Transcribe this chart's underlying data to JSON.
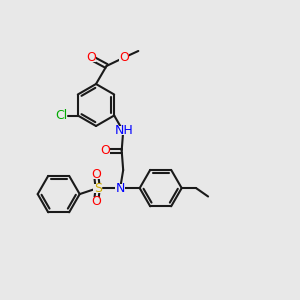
{
  "bg_color": "#e8e8e8",
  "bond_color": "#1a1a1a",
  "bond_lw": 1.5,
  "atom_colors": {
    "O": "#ff0000",
    "N": "#0000ff",
    "Cl": "#00aa00",
    "S": "#ccaa00",
    "C": "#1a1a1a",
    "H": "#4a8a8a"
  },
  "font_size": 9,
  "font_size_small": 8
}
